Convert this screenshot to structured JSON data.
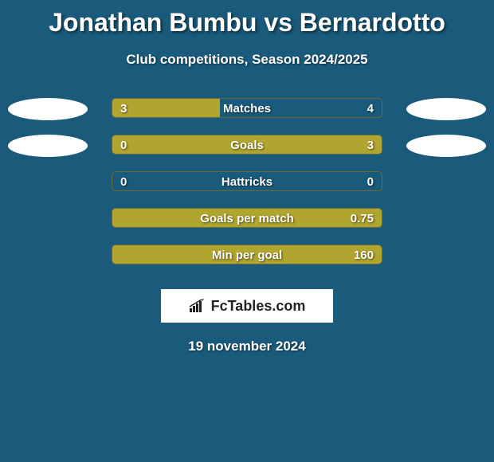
{
  "title": "Jonathan Bumbu vs Bernardotto",
  "subtitle": "Club competitions, Season 2024/2025",
  "background_color": "#1a5a7a",
  "bar_color": "#b0a52e",
  "bar_border_color": "#6a6a3a",
  "ellipse_color": "#ffffff",
  "text_color": "#ffffff",
  "rows": [
    {
      "label": "Matches",
      "left_value": "3",
      "right_value": "4",
      "left_fill_pct": 40,
      "right_fill_pct": 0,
      "show_left_ellipse": true,
      "show_right_ellipse": true
    },
    {
      "label": "Goals",
      "left_value": "0",
      "right_value": "3",
      "left_fill_pct": 0,
      "right_fill_pct": 100,
      "show_left_ellipse": true,
      "show_right_ellipse": true
    },
    {
      "label": "Hattricks",
      "left_value": "0",
      "right_value": "0",
      "left_fill_pct": 0,
      "right_fill_pct": 0,
      "show_left_ellipse": false,
      "show_right_ellipse": false
    },
    {
      "label": "Goals per match",
      "left_value": "",
      "right_value": "0.75",
      "left_fill_pct": 0,
      "right_fill_pct": 100,
      "show_left_ellipse": false,
      "show_right_ellipse": false
    },
    {
      "label": "Min per goal",
      "left_value": "",
      "right_value": "160",
      "left_fill_pct": 0,
      "right_fill_pct": 100,
      "show_left_ellipse": false,
      "show_right_ellipse": false
    }
  ],
  "footer_label": "FcTables.com",
  "date_label": "19 november 2024"
}
